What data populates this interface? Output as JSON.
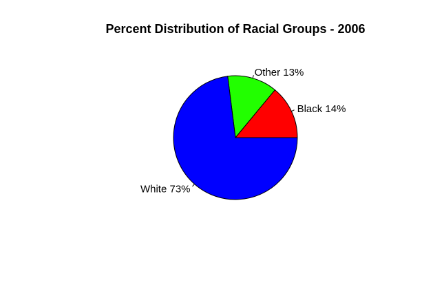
{
  "chart_data": {
    "type": "pie",
    "title": "Percent Distribution of Racial Groups - 2006",
    "slices": [
      {
        "label": "Black 14%",
        "value": 14,
        "color": "#ff0000"
      },
      {
        "label": "Other 13%",
        "value": 13,
        "color": "#22ff00"
      },
      {
        "label": "White 73%",
        "value": 73,
        "color": "#0000ff"
      }
    ],
    "start_angle_deg": 0,
    "direction": "counterclockwise",
    "legend": "none"
  }
}
